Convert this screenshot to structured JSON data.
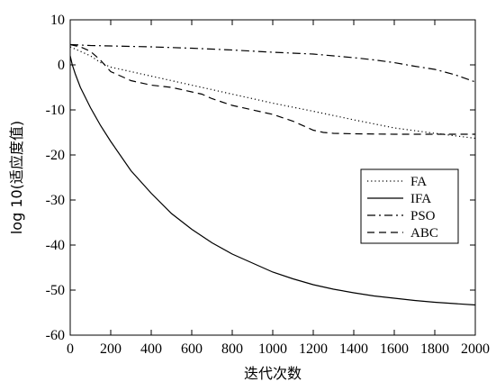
{
  "chart_data": {
    "type": "line",
    "title": "",
    "xlabel": "迭代次数",
    "ylabel": "log 10(适应度值)",
    "xlim": [
      0,
      2000
    ],
    "ylim": [
      -60,
      10
    ],
    "xticks": [
      "0",
      "200",
      "400",
      "600",
      "800",
      "1000",
      "1200",
      "1400",
      "1600",
      "1800",
      "2000"
    ],
    "yticks": [
      "10",
      "0",
      "-10",
      "-20",
      "-30",
      "-40",
      "-50",
      "-60"
    ],
    "grid": false,
    "legend_position": "right",
    "series": [
      {
        "name": "FA",
        "dash": "dotted",
        "x": [
          0,
          50,
          100,
          150,
          200,
          300,
          400,
          600,
          800,
          1000,
          1200,
          1400,
          1600,
          1800,
          2000
        ],
        "y": [
          4,
          3,
          2,
          0.5,
          -0.5,
          -1.5,
          -2.5,
          -4.5,
          -6.5,
          -8.5,
          -10.3,
          -12.2,
          -14,
          -15.2,
          -16.3
        ]
      },
      {
        "name": "IFA",
        "dash": "solid",
        "x": [
          0,
          10,
          25,
          50,
          100,
          150,
          200,
          300,
          400,
          500,
          600,
          700,
          800,
          900,
          1000,
          1100,
          1200,
          1300,
          1400,
          1500,
          1600,
          1700,
          1800,
          1900,
          2000
        ],
        "y": [
          2,
          0,
          -2,
          -5,
          -9.5,
          -13.5,
          -17,
          -23.5,
          -28.5,
          -33,
          -36.5,
          -39.5,
          -42,
          -44,
          -46,
          -47.5,
          -48.8,
          -49.8,
          -50.6,
          -51.3,
          -51.8,
          -52.3,
          -52.7,
          -53,
          -53.3
        ]
      },
      {
        "name": "PSO",
        "dash": "dashdot",
        "x": [
          0,
          100,
          200,
          400,
          600,
          800,
          1000,
          1200,
          1300,
          1400,
          1500,
          1600,
          1700,
          1800,
          1900,
          2000
        ],
        "y": [
          4.5,
          4.3,
          4.2,
          4,
          3.7,
          3.3,
          2.8,
          2.4,
          2,
          1.6,
          1.1,
          0.5,
          -0.3,
          -1,
          -2.2,
          -3.8
        ]
      },
      {
        "name": "ABC",
        "dash": "dashed",
        "x": [
          0,
          50,
          100,
          150,
          200,
          250,
          300,
          400,
          500,
          600,
          650,
          700,
          800,
          900,
          1000,
          1100,
          1200,
          1250,
          1300,
          1400,
          1600,
          1800,
          2000
        ],
        "y": [
          4.5,
          4,
          3,
          1,
          -1.5,
          -2.5,
          -3.5,
          -4.5,
          -5,
          -6,
          -6.5,
          -7.5,
          -9,
          -10,
          -11,
          -12.5,
          -14.5,
          -15,
          -15.2,
          -15.3,
          -15.4,
          -15.4,
          -15.4
        ]
      }
    ]
  }
}
